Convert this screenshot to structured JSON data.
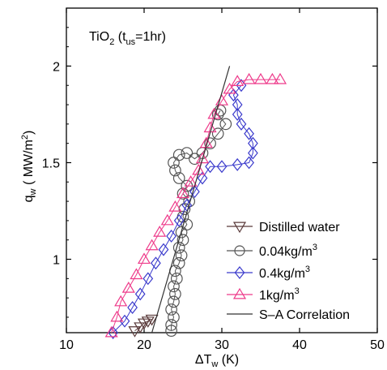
{
  "chart_data": {
    "type": "scatter",
    "annotation": "TiO2 (tus=1hr)",
    "annotation_parts": {
      "base": "TiO",
      "sub1": "2",
      "mid": " (t",
      "sub2": "us",
      "tail": "=1hr)"
    },
    "xlabel": "ΔTw (K)",
    "xlabel_parts": {
      "base": "ΔT",
      "sub": "w",
      "tail": " (K)"
    },
    "ylabel": "qw ( MW/m2)",
    "ylabel_parts": {
      "base": "q",
      "sub": "w",
      "mid": " ( MW/m",
      "sup": "2",
      "tail": ")"
    },
    "xlim": [
      10,
      50
    ],
    "ylim": [
      0.62,
      2.3
    ],
    "x_ticks": [
      10,
      20,
      30,
      40,
      50
    ],
    "y_ticks": [
      1,
      1.5,
      2
    ],
    "x_tick_labels": [
      "10",
      "20",
      "30",
      "40",
      "50"
    ],
    "y_tick_labels": [
      "1",
      "1.5",
      "2"
    ],
    "grid": false,
    "legend_position": "bottom-right",
    "series": [
      {
        "name": "Distilled water",
        "marker": "triangle-down",
        "color": "#5a3a3a",
        "points": [
          [
            18.8,
            0.63
          ],
          [
            19.5,
            0.65
          ],
          [
            20,
            0.67
          ],
          [
            20.5,
            0.68
          ],
          [
            21,
            0.69
          ]
        ]
      },
      {
        "name": "0.04kg/m3",
        "marker": "circle",
        "color": "#555555",
        "points": [
          [
            23.5,
            0.63
          ],
          [
            23.5,
            0.66
          ],
          [
            23.8,
            0.7
          ],
          [
            23.5,
            0.74
          ],
          [
            23.8,
            0.78
          ],
          [
            24,
            0.82
          ],
          [
            23.8,
            0.86
          ],
          [
            24.2,
            0.9
          ],
          [
            24,
            0.94
          ],
          [
            24.5,
            0.98
          ],
          [
            24.8,
            1.02
          ],
          [
            24.5,
            1.06
          ],
          [
            25,
            1.1
          ],
          [
            24.8,
            1.14
          ],
          [
            25.5,
            1.18
          ],
          [
            25,
            1.22
          ],
          [
            25.2,
            1.26
          ],
          [
            25.8,
            1.3
          ],
          [
            25,
            1.34
          ],
          [
            25.5,
            1.38
          ],
          [
            24.5,
            1.42
          ],
          [
            24,
            1.46
          ],
          [
            23.8,
            1.5
          ],
          [
            24.5,
            1.54
          ],
          [
            25.5,
            1.55
          ],
          [
            26.5,
            1.52
          ],
          [
            27.5,
            1.55
          ],
          [
            28.5,
            1.6
          ],
          [
            29.5,
            1.65
          ],
          [
            30.5,
            1.7
          ],
          [
            29.5,
            1.75
          ],
          [
            29.8,
            1.77
          ]
        ]
      },
      {
        "name": "0.4kg/m3",
        "marker": "diamond",
        "color": "#3a3acc",
        "points": [
          [
            16,
            0.62
          ],
          [
            17.5,
            0.68
          ],
          [
            18.5,
            0.75
          ],
          [
            19.5,
            0.82
          ],
          [
            20.5,
            0.9
          ],
          [
            21.5,
            0.98
          ],
          [
            22.5,
            1.05
          ],
          [
            23.5,
            1.12
          ],
          [
            24.5,
            1.2
          ],
          [
            25.5,
            1.28
          ],
          [
            26.5,
            1.35
          ],
          [
            27.5,
            1.42
          ],
          [
            28.5,
            1.48
          ],
          [
            30,
            1.48
          ],
          [
            32,
            1.49
          ],
          [
            33.5,
            1.5
          ],
          [
            34,
            1.55
          ],
          [
            34,
            1.6
          ],
          [
            33.5,
            1.65
          ],
          [
            32.5,
            1.7
          ],
          [
            32,
            1.75
          ],
          [
            32,
            1.8
          ],
          [
            31.5,
            1.85
          ],
          [
            32.5,
            1.9
          ]
        ]
      },
      {
        "name": "1kg/m3",
        "marker": "triangle-up",
        "color": "#ee3a8a",
        "points": [
          [
            15.8,
            0.62
          ],
          [
            16.5,
            0.7
          ],
          [
            17,
            0.78
          ],
          [
            18,
            0.85
          ],
          [
            19,
            0.92
          ],
          [
            20,
            1
          ],
          [
            21,
            1.07
          ],
          [
            22,
            1.14
          ],
          [
            23,
            1.2
          ],
          [
            24,
            1.27
          ],
          [
            25,
            1.34
          ],
          [
            26,
            1.4
          ],
          [
            27,
            1.46
          ],
          [
            27.5,
            1.52
          ],
          [
            28,
            1.6
          ],
          [
            28.5,
            1.68
          ],
          [
            29,
            1.75
          ],
          [
            30,
            1.82
          ],
          [
            31,
            1.88
          ],
          [
            32,
            1.92
          ],
          [
            33.5,
            1.93
          ],
          [
            35,
            1.93
          ],
          [
            36.5,
            1.93
          ],
          [
            37.5,
            1.93
          ]
        ]
      },
      {
        "name": "S–A Correlation",
        "marker": "line",
        "color": "#333333",
        "points": [
          [
            21,
            0.62
          ],
          [
            31,
            2.0
          ]
        ]
      }
    ]
  }
}
